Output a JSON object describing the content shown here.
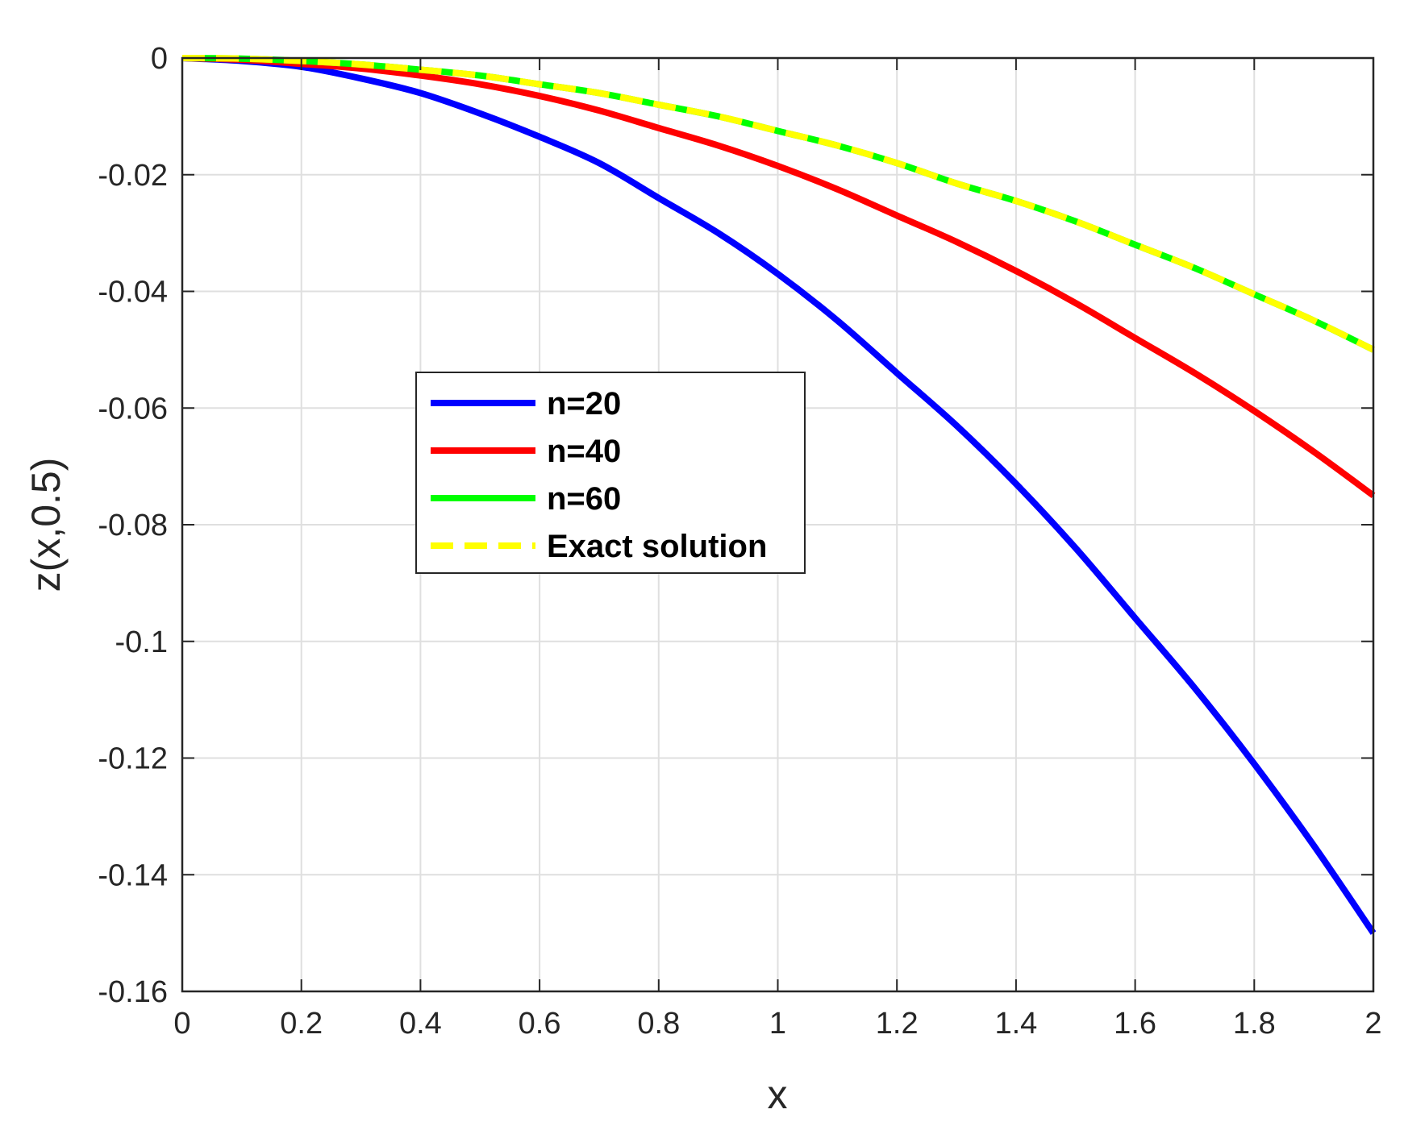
{
  "chart_data": {
    "type": "line",
    "title": "",
    "xlabel": "x",
    "ylabel": "z(x,0.5)",
    "xlim": [
      0,
      2
    ],
    "ylim": [
      -0.16,
      0
    ],
    "grid": true,
    "legend_position": "center-left",
    "x_ticks": [
      0,
      0.2,
      0.4,
      0.6,
      0.8,
      1,
      1.2,
      1.4,
      1.6,
      1.8,
      2
    ],
    "x_tick_labels": [
      "0",
      "0.2",
      "0.4",
      "0.6",
      "0.8",
      "1",
      "1.2",
      "1.4",
      "1.6",
      "1.8",
      "2"
    ],
    "y_ticks": [
      0,
      -0.02,
      -0.04,
      -0.06,
      -0.08,
      -0.1,
      -0.12,
      -0.14,
      -0.16
    ],
    "y_tick_labels": [
      "0",
      "-0.02",
      "-0.04",
      "-0.06",
      "-0.08",
      "-0.1",
      "-0.12",
      "-0.14",
      "-0.16"
    ],
    "x": [
      0,
      0.1,
      0.2,
      0.3,
      0.4,
      0.5,
      0.6,
      0.7,
      0.8,
      0.9,
      1.0,
      1.1,
      1.2,
      1.3,
      1.4,
      1.5,
      1.6,
      1.7,
      1.8,
      1.9,
      2.0
    ],
    "series": [
      {
        "name": "n=20",
        "color": "#0000ff",
        "style": "solid",
        "values": [
          0,
          -0.0005,
          -0.0015,
          -0.0035,
          -0.006,
          -0.0095,
          -0.0135,
          -0.018,
          -0.024,
          -0.03,
          -0.037,
          -0.045,
          -0.054,
          -0.063,
          -0.073,
          -0.084,
          -0.096,
          -0.108,
          -0.121,
          -0.135,
          -0.15
        ]
      },
      {
        "name": "n=40",
        "color": "#ff0000",
        "style": "solid",
        "values": [
          0,
          -0.0003,
          -0.001,
          -0.0018,
          -0.003,
          -0.0045,
          -0.0065,
          -0.009,
          -0.012,
          -0.015,
          -0.0185,
          -0.0225,
          -0.027,
          -0.0315,
          -0.0365,
          -0.042,
          -0.048,
          -0.054,
          -0.0605,
          -0.0675,
          -0.075
        ]
      },
      {
        "name": "n=60",
        "color": "#00ff00",
        "style": "solid",
        "values": [
          0,
          -0.0001,
          -0.0005,
          -0.0011,
          -0.002,
          -0.003,
          -0.0045,
          -0.006,
          -0.008,
          -0.01,
          -0.0125,
          -0.015,
          -0.018,
          -0.0215,
          -0.0245,
          -0.028,
          -0.032,
          -0.036,
          -0.0405,
          -0.045,
          -0.05
        ]
      },
      {
        "name": "Exact solution",
        "color": "#ffff00",
        "style": "dashed",
        "values": [
          0,
          -0.0001,
          -0.0005,
          -0.0011,
          -0.002,
          -0.003,
          -0.0045,
          -0.006,
          -0.008,
          -0.01,
          -0.0125,
          -0.015,
          -0.018,
          -0.0215,
          -0.0245,
          -0.028,
          -0.032,
          -0.036,
          -0.0405,
          -0.045,
          -0.05
        ]
      }
    ]
  }
}
